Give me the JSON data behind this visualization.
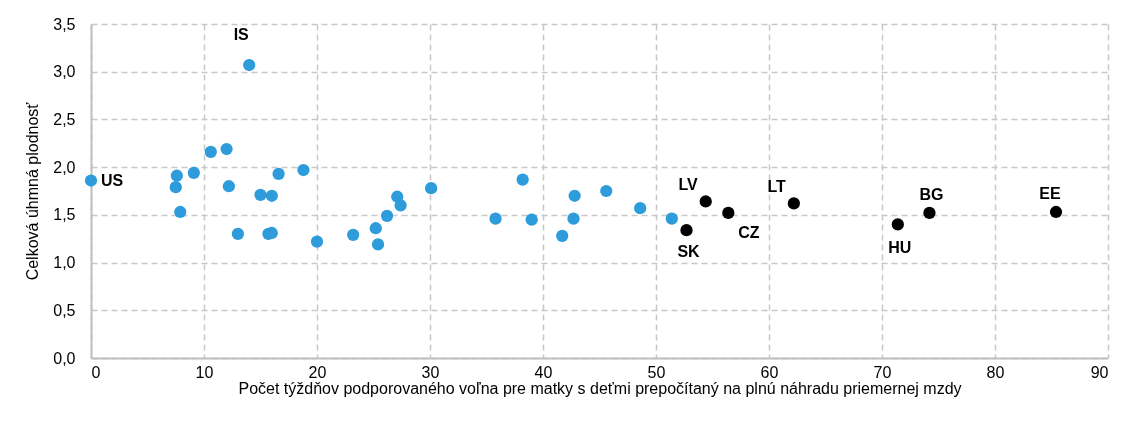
{
  "chart_data": {
    "type": "scatter",
    "xlabel": "Počet týždňov podporovaného voľna pre matky s deťmi prepočítaný na plnú náhradu priemernej mzdy",
    "ylabel": "Celková úhmná plodnosť",
    "marker": "circle",
    "grid": true,
    "legend": false,
    "xlim": [
      0,
      90
    ],
    "xticks": [
      0,
      10,
      20,
      30,
      40,
      50,
      60,
      70,
      80,
      90
    ],
    "ylim": [
      0,
      3.5
    ],
    "yticks": [
      {
        "value": 0,
        "label": "0,0"
      },
      {
        "value": 0.5,
        "label": "0,5"
      },
      {
        "value": 1,
        "label": "1,0"
      },
      {
        "value": 1.5,
        "label": "1,5"
      },
      {
        "value": 2,
        "label": "2,0"
      },
      {
        "value": 2.5,
        "label": "2,5"
      },
      {
        "value": 3,
        "label": "3,0"
      },
      {
        "value": 3.5,
        "label": "3,5"
      }
    ],
    "series": [
      {
        "color": "#2e9bdb",
        "x": [
          0,
          7.6,
          7.5,
          7.9,
          9.1,
          10.6,
          12.0,
          12.2,
          13.0,
          14.0,
          15.0,
          16.0,
          15.7,
          16.0,
          16.6,
          18.8,
          20.0,
          23.2,
          25.2,
          25.4,
          26.2,
          27.1,
          27.4,
          30.1,
          35.8,
          38.2,
          39.0,
          41.7,
          42.7,
          42.8,
          45.6,
          48.6,
          51.4
        ],
        "values": [
          1.86,
          1.91,
          1.79,
          1.53,
          1.94,
          2.16,
          2.19,
          1.8,
          1.3,
          3.07,
          1.71,
          1.7,
          1.3,
          1.31,
          1.93,
          1.97,
          1.22,
          1.29,
          1.36,
          1.19,
          1.49,
          1.69,
          1.6,
          1.78,
          1.46,
          1.87,
          1.45,
          1.28,
          1.46,
          1.7,
          1.75,
          1.57,
          1.46
        ]
      },
      {
        "color": "#000000",
        "x": [
          52.7,
          54.4,
          56.4,
          62.2,
          71.4,
          74.2,
          85.4
        ],
        "values": [
          1.34,
          1.64,
          1.52,
          1.62,
          1.4,
          1.52,
          1.53
        ]
      }
    ],
    "annotations": [
      {
        "text": "US",
        "x": 0,
        "y": 1.86
      },
      {
        "text": "IS",
        "x": 14.0,
        "y": 3.07
      },
      {
        "text": "SK",
        "x": 52.7,
        "y": 1.34
      },
      {
        "text": "LV",
        "x": 54.4,
        "y": 1.64
      },
      {
        "text": "CZ",
        "x": 56.4,
        "y": 1.52
      },
      {
        "text": "LT",
        "x": 62.2,
        "y": 1.62
      },
      {
        "text": "HU",
        "x": 71.4,
        "y": 1.4
      },
      {
        "text": "BG",
        "x": 74.2,
        "y": 1.52
      },
      {
        "text": "EE",
        "x": 85.4,
        "y": 1.53
      }
    ]
  }
}
